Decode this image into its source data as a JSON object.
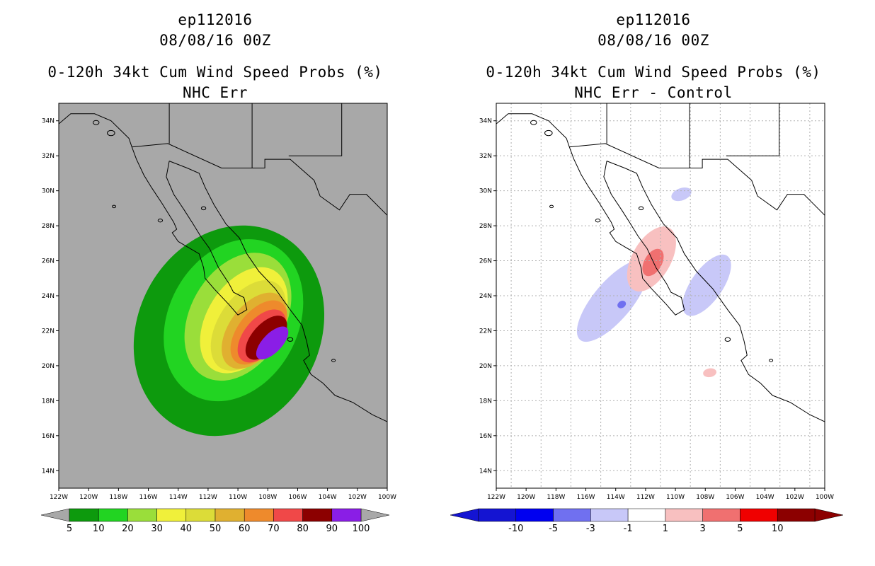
{
  "chart_data": [
    {
      "type": "heatmap",
      "title": "ep112016",
      "subtitle": "08/08/16 00Z",
      "field_title": "0-120h 34kt Cum Wind Speed Probs (%)",
      "field_subtitle": "NHC Err",
      "xlim": [
        -122,
        -100
      ],
      "ylim": [
        13,
        35
      ],
      "x_ticks": [
        "122W",
        "120W",
        "118W",
        "116W",
        "114W",
        "112W",
        "110W",
        "108W",
        "106W",
        "104W",
        "102W",
        "100W"
      ],
      "y_ticks": [
        "14N",
        "16N",
        "18N",
        "20N",
        "22N",
        "24N",
        "26N",
        "28N",
        "30N",
        "32N",
        "34N"
      ],
      "grid": false,
      "background": "#a8a8a8",
      "colorbar": {
        "labels": [
          "5",
          "10",
          "20",
          "30",
          "40",
          "50",
          "60",
          "70",
          "80",
          "90",
          "100"
        ],
        "colors": [
          "#0d9a0d",
          "#22d422",
          "#9ade3a",
          "#f0f03a",
          "#dcdc38",
          "#e0b030",
          "#ee8a2c",
          "#f04848",
          "#8c0000",
          "#8a1ee6"
        ],
        "under_color": "#a8a8a8",
        "over_color": "#a8a8a8"
      },
      "contours": [
        {
          "level": 5,
          "color": "#0d9a0d",
          "center": [
            -110.6,
            22.0
          ],
          "semi_axes": [
            7.3,
            5.2
          ],
          "angle": -62
        },
        {
          "level": 10,
          "color": "#22d422",
          "center": [
            -110.3,
            22.6
          ],
          "semi_axes": [
            5.7,
            3.7
          ],
          "angle": -62
        },
        {
          "level": 20,
          "color": "#9ade3a",
          "center": [
            -110.0,
            22.8
          ],
          "semi_axes": [
            4.6,
            2.7
          ],
          "angle": -60
        },
        {
          "level": 30,
          "color": "#f0f03a",
          "center": [
            -109.6,
            22.6
          ],
          "semi_axes": [
            3.9,
            2.1
          ],
          "angle": -58
        },
        {
          "level": 40,
          "color": "#dcdc38",
          "center": [
            -109.3,
            22.3
          ],
          "semi_axes": [
            3.4,
            1.7
          ],
          "angle": -56
        },
        {
          "level": 50,
          "color": "#e0b030",
          "center": [
            -108.9,
            22.0
          ],
          "semi_axes": [
            2.9,
            1.45
          ],
          "angle": -54
        },
        {
          "level": 60,
          "color": "#ee8a2c",
          "center": [
            -108.6,
            21.9
          ],
          "semi_axes": [
            2.5,
            1.2
          ],
          "angle": -52
        },
        {
          "level": 70,
          "color": "#f04848",
          "center": [
            -108.4,
            21.7
          ],
          "semi_axes": [
            2.1,
            1.0
          ],
          "angle": -50
        },
        {
          "level": 80,
          "color": "#8c0000",
          "center": [
            -108.1,
            21.6
          ],
          "semi_axes": [
            1.8,
            0.8
          ],
          "angle": -48
        },
        {
          "level": 90,
          "color": "#8a1ee6",
          "center": [
            -107.7,
            21.3
          ],
          "semi_axes": [
            1.4,
            0.55
          ],
          "angle": -46
        }
      ]
    },
    {
      "type": "heatmap",
      "title": "ep112016",
      "subtitle": "08/08/16 00Z",
      "field_title": "0-120h 34kt Cum Wind Speed Probs (%)",
      "field_subtitle": "NHC Err - Control",
      "xlim": [
        -122,
        -100
      ],
      "ylim": [
        13,
        35
      ],
      "x_ticks": [
        "122W",
        "120W",
        "118W",
        "116W",
        "114W",
        "112W",
        "110W",
        "108W",
        "106W",
        "104W",
        "102W",
        "100W"
      ],
      "y_ticks": [
        "14N",
        "16N",
        "18N",
        "20N",
        "22N",
        "24N",
        "26N",
        "28N",
        "30N",
        "32N",
        "34N"
      ],
      "grid": true,
      "background": "#ffffff",
      "colorbar": {
        "labels": [
          "-10",
          "-5",
          "-3",
          "-1",
          "1",
          "3",
          "5",
          "10"
        ],
        "colors": [
          "#1414d2",
          "#0000f0",
          "#7070f0",
          "#c8c8f8",
          "#ffffff",
          "#f8c0c0",
          "#f07070",
          "#f00000",
          "#8c0000"
        ],
        "under_color": "#1414d2",
        "over_color": "#8c0000"
      },
      "contours": [
        {
          "level": -3,
          "color": "#c8c8f8",
          "center": [
            -114.2,
            23.7
          ],
          "semi_axes": [
            3.4,
            1.1
          ],
          "angle": -50
        },
        {
          "level": -3,
          "color": "#c8c8f8",
          "center": [
            -107.9,
            24.6
          ],
          "semi_axes": [
            2.4,
            0.9
          ],
          "angle": -55
        },
        {
          "level": -3,
          "color": "#c8c8f8",
          "center": [
            -109.6,
            29.8
          ],
          "semi_axes": [
            0.7,
            0.35
          ],
          "angle": -20
        },
        {
          "level": -5,
          "color": "#7070f0",
          "center": [
            -113.6,
            23.5
          ],
          "semi_axes": [
            0.3,
            0.2
          ],
          "angle": -30
        },
        {
          "level": 1,
          "color": "#f8c0c0",
          "center": [
            -111.6,
            26.1
          ],
          "semi_axes": [
            2.4,
            1.1
          ],
          "angle": -60
        },
        {
          "level": 1,
          "color": "#f8c0c0",
          "center": [
            -107.7,
            19.6
          ],
          "semi_axes": [
            0.45,
            0.25
          ],
          "angle": -10
        },
        {
          "level": 3,
          "color": "#f07070",
          "center": [
            -111.5,
            25.9
          ],
          "semi_axes": [
            1.0,
            0.5
          ],
          "angle": -60
        }
      ]
    }
  ]
}
